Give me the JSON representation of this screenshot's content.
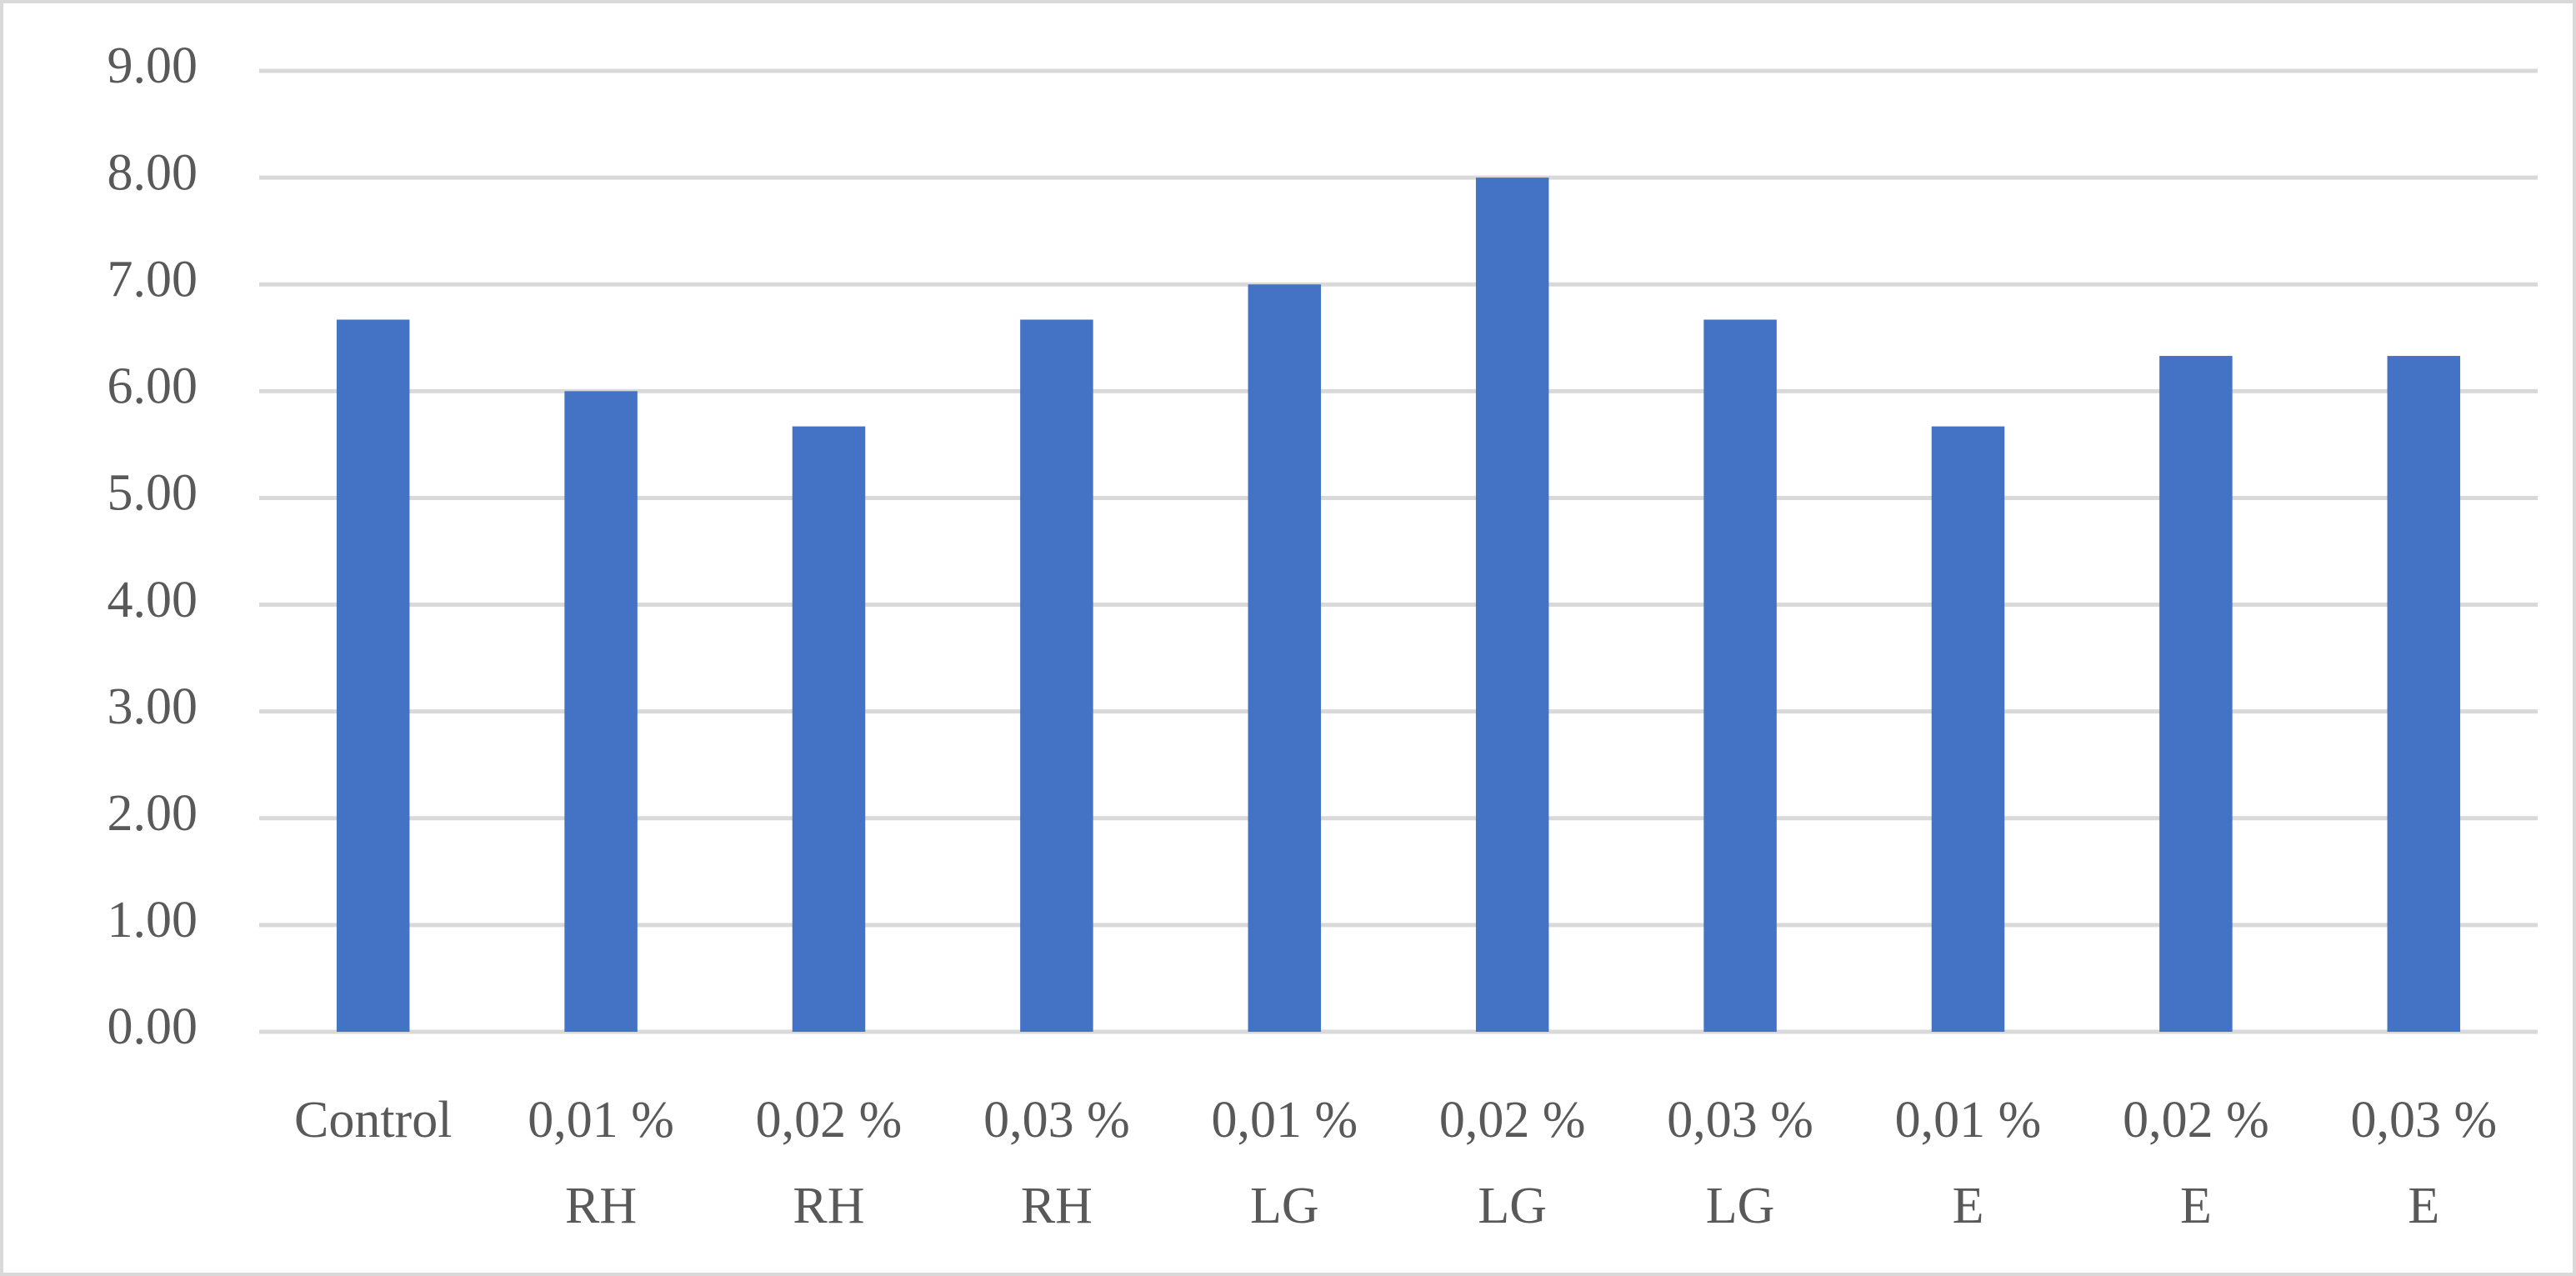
{
  "chart_data": {
    "type": "bar",
    "categories": [
      [
        "Control"
      ],
      [
        "0,01 %",
        "RH"
      ],
      [
        "0,02 %",
        "RH"
      ],
      [
        "0,03 %",
        "RH"
      ],
      [
        "0,01 %",
        "LG"
      ],
      [
        "0,02 %",
        "LG"
      ],
      [
        "0,03 %",
        "LG"
      ],
      [
        "0,01 %",
        "E"
      ],
      [
        "0,02 %",
        "E"
      ],
      [
        "0,03 %",
        "E"
      ]
    ],
    "values": [
      6.67,
      6.0,
      5.67,
      6.67,
      7.0,
      8.0,
      6.67,
      5.67,
      6.33,
      6.33
    ],
    "color": "#4472c4",
    "ylim": [
      0,
      9
    ],
    "yticks": [
      {
        "value": 0,
        "label": "0.00"
      },
      {
        "value": 1,
        "label": "1.00"
      },
      {
        "value": 2,
        "label": "2.00"
      },
      {
        "value": 3,
        "label": "3.00"
      },
      {
        "value": 4,
        "label": "4.00"
      },
      {
        "value": 5,
        "label": "5.00"
      },
      {
        "value": 6,
        "label": "6.00"
      },
      {
        "value": 7,
        "label": "7.00"
      },
      {
        "value": 8,
        "label": "8.00"
      },
      {
        "value": 9,
        "label": "9.00"
      }
    ],
    "grid": true
  }
}
